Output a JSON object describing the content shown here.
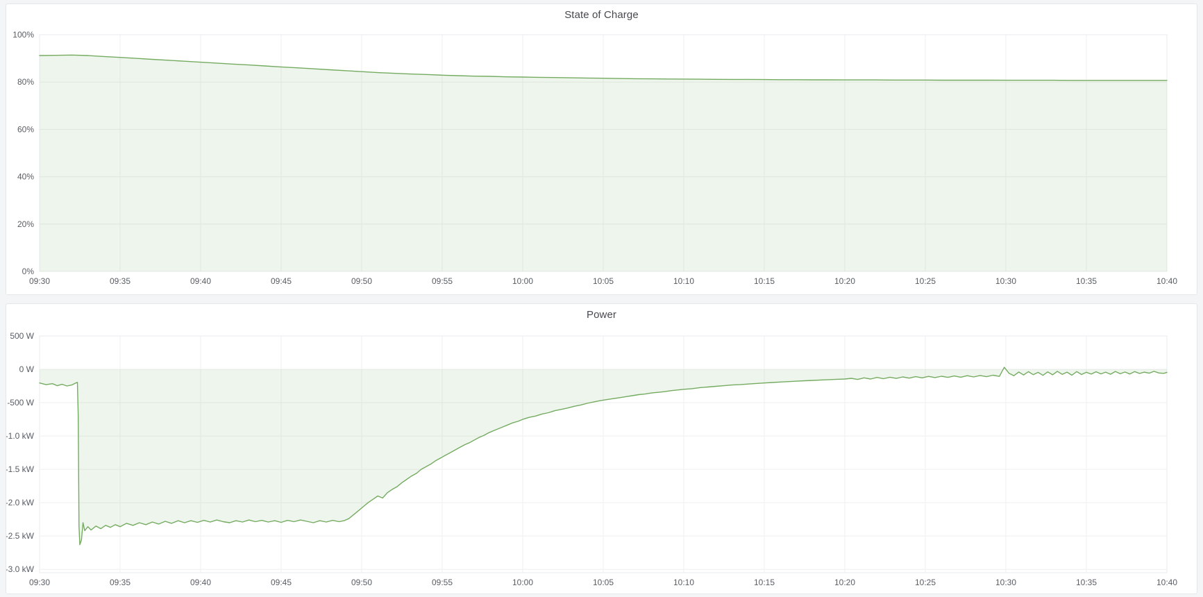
{
  "page": {
    "background": "#f4f5f7"
  },
  "panels": [
    {
      "title": "State of Charge"
    },
    {
      "title": "Power"
    }
  ],
  "colors": {
    "series_line": "#74ab60",
    "series_fill": "rgba(116,171,96,0.12)",
    "gridline": "#eef0f1",
    "plot_border": "#e9ebec",
    "tick_text": "#585d63",
    "panel_background": "#ffffff",
    "panel_border": "#e4e7e9"
  },
  "chart_data": [
    {
      "type": "area",
      "title": "State of Charge",
      "xlabel": "",
      "ylabel": "",
      "unit": "%",
      "grid": true,
      "legend": "none",
      "x_range_minutes": [
        0,
        70
      ],
      "x_tick_step_minutes": 5,
      "x_tick_labels": [
        "09:30",
        "09:35",
        "09:40",
        "09:45",
        "09:50",
        "09:55",
        "10:00",
        "10:05",
        "10:10",
        "10:15",
        "10:20",
        "10:25",
        "10:30",
        "10:35",
        "10:40"
      ],
      "ylim": [
        0,
        100
      ],
      "y_ticks": [
        {
          "value": 100,
          "label": "100%"
        },
        {
          "value": 80,
          "label": "80%"
        },
        {
          "value": 60,
          "label": "60%"
        },
        {
          "value": 40,
          "label": "40%"
        },
        {
          "value": 20,
          "label": "20%"
        },
        {
          "value": 0,
          "label": "0%"
        }
      ],
      "series": [
        {
          "name": "State of Charge",
          "fill_baseline": 0,
          "x_start_minute": 0,
          "x_step_minutes": 1,
          "values": [
            91.2,
            91.3,
            91.4,
            91.2,
            90.8,
            90.4,
            90.0,
            89.6,
            89.2,
            88.8,
            88.4,
            88.0,
            87.6,
            87.2,
            86.8,
            86.4,
            86.0,
            85.6,
            85.2,
            84.8,
            84.4,
            84.0,
            83.7,
            83.4,
            83.2,
            82.9,
            82.7,
            82.5,
            82.4,
            82.2,
            82.1,
            82.0,
            81.9,
            81.8,
            81.7,
            81.6,
            81.5,
            81.4,
            81.35,
            81.3,
            81.25,
            81.2,
            81.15,
            81.1,
            81.1,
            81.05,
            81.0,
            81.0,
            80.95,
            80.95,
            80.9,
            80.9,
            80.9,
            80.85,
            80.85,
            80.85,
            80.8,
            80.8,
            80.8,
            80.8,
            80.75,
            80.75,
            80.75,
            80.75,
            80.7,
            80.7,
            80.7,
            80.7,
            80.7,
            80.7,
            80.7
          ]
        }
      ]
    },
    {
      "type": "area",
      "title": "Power",
      "xlabel": "",
      "ylabel": "",
      "unit": "W",
      "grid": true,
      "legend": "none",
      "x_range_minutes": [
        0,
        70
      ],
      "x_tick_step_minutes": 5,
      "x_tick_labels": [
        "09:30",
        "09:35",
        "09:40",
        "09:45",
        "09:50",
        "09:55",
        "10:00",
        "10:05",
        "10:10",
        "10:15",
        "10:20",
        "10:25",
        "10:30",
        "10:35",
        "10:40"
      ],
      "ylim": [
        -3050,
        500
      ],
      "y_ticks": [
        {
          "value": 500,
          "label": "500 W"
        },
        {
          "value": 0,
          "label": "0 W"
        },
        {
          "value": -500,
          "label": "-500 W"
        },
        {
          "value": -1000,
          "label": "-1.0 kW"
        },
        {
          "value": -1500,
          "label": "-1.5 kW"
        },
        {
          "value": -2000,
          "label": "-2.0 kW"
        },
        {
          "value": -2500,
          "label": "-2.5 kW"
        },
        {
          "value": -3000,
          "label": "-3.0 kW"
        }
      ],
      "series": [
        {
          "name": "Power",
          "fill_baseline": 0,
          "points": [
            [
              0,
              -205
            ],
            [
              0.4,
              -230
            ],
            [
              0.8,
              -215
            ],
            [
              1.1,
              -245
            ],
            [
              1.4,
              -225
            ],
            [
              1.7,
              -250
            ],
            [
              2.0,
              -235
            ],
            [
              2.2,
              -210
            ],
            [
              2.35,
              -195
            ],
            [
              2.4,
              -700
            ],
            [
              2.45,
              -2350
            ],
            [
              2.5,
              -2630
            ],
            [
              2.6,
              -2560
            ],
            [
              2.7,
              -2300
            ],
            [
              2.8,
              -2420
            ],
            [
              3.0,
              -2360
            ],
            [
              3.2,
              -2410
            ],
            [
              3.5,
              -2350
            ],
            [
              3.8,
              -2390
            ],
            [
              4.1,
              -2340
            ],
            [
              4.4,
              -2370
            ],
            [
              4.7,
              -2330
            ],
            [
              5.0,
              -2360
            ],
            [
              5.4,
              -2310
            ],
            [
              5.8,
              -2340
            ],
            [
              6.2,
              -2300
            ],
            [
              6.6,
              -2330
            ],
            [
              7.0,
              -2290
            ],
            [
              7.4,
              -2320
            ],
            [
              7.8,
              -2280
            ],
            [
              8.2,
              -2310
            ],
            [
              8.6,
              -2270
            ],
            [
              9.0,
              -2300
            ],
            [
              9.4,
              -2270
            ],
            [
              9.8,
              -2295
            ],
            [
              10.2,
              -2265
            ],
            [
              10.6,
              -2290
            ],
            [
              11.0,
              -2260
            ],
            [
              11.4,
              -2285
            ],
            [
              11.8,
              -2300
            ],
            [
              12.2,
              -2270
            ],
            [
              12.6,
              -2290
            ],
            [
              13.0,
              -2260
            ],
            [
              13.4,
              -2285
            ],
            [
              13.8,
              -2265
            ],
            [
              14.2,
              -2290
            ],
            [
              14.6,
              -2270
            ],
            [
              15.0,
              -2295
            ],
            [
              15.4,
              -2265
            ],
            [
              15.8,
              -2285
            ],
            [
              16.2,
              -2260
            ],
            [
              16.6,
              -2280
            ],
            [
              17.0,
              -2300
            ],
            [
              17.4,
              -2270
            ],
            [
              17.8,
              -2290
            ],
            [
              18.2,
              -2265
            ],
            [
              18.6,
              -2285
            ],
            [
              18.9,
              -2270
            ],
            [
              19.2,
              -2240
            ],
            [
              19.5,
              -2180
            ],
            [
              19.8,
              -2120
            ],
            [
              20.1,
              -2060
            ],
            [
              20.4,
              -2000
            ],
            [
              20.7,
              -1950
            ],
            [
              21.0,
              -1900
            ],
            [
              21.3,
              -1930
            ],
            [
              21.6,
              -1850
            ],
            [
              21.9,
              -1800
            ],
            [
              22.2,
              -1760
            ],
            [
              22.5,
              -1700
            ],
            [
              22.8,
              -1650
            ],
            [
              23.1,
              -1600
            ],
            [
              23.4,
              -1560
            ],
            [
              23.7,
              -1500
            ],
            [
              24.0,
              -1460
            ],
            [
              24.3,
              -1420
            ],
            [
              24.6,
              -1370
            ],
            [
              24.9,
              -1330
            ],
            [
              25.2,
              -1290
            ],
            [
              25.5,
              -1250
            ],
            [
              25.8,
              -1210
            ],
            [
              26.1,
              -1170
            ],
            [
              26.4,
              -1130
            ],
            [
              26.7,
              -1100
            ],
            [
              27.0,
              -1060
            ],
            [
              27.3,
              -1020
            ],
            [
              27.6,
              -990
            ],
            [
              27.9,
              -950
            ],
            [
              28.2,
              -920
            ],
            [
              28.5,
              -890
            ],
            [
              28.8,
              -860
            ],
            [
              29.1,
              -830
            ],
            [
              29.4,
              -800
            ],
            [
              29.7,
              -780
            ],
            [
              30.0,
              -750
            ],
            [
              30.4,
              -720
            ],
            [
              30.8,
              -700
            ],
            [
              31.2,
              -670
            ],
            [
              31.6,
              -650
            ],
            [
              32.0,
              -620
            ],
            [
              32.4,
              -600
            ],
            [
              32.8,
              -580
            ],
            [
              33.2,
              -555
            ],
            [
              33.6,
              -535
            ],
            [
              34.0,
              -510
            ],
            [
              34.4,
              -490
            ],
            [
              34.8,
              -470
            ],
            [
              35.2,
              -455
            ],
            [
              35.6,
              -440
            ],
            [
              36.0,
              -425
            ],
            [
              36.4,
              -410
            ],
            [
              36.8,
              -395
            ],
            [
              37.2,
              -380
            ],
            [
              37.6,
              -370
            ],
            [
              38.0,
              -355
            ],
            [
              38.4,
              -345
            ],
            [
              38.8,
              -335
            ],
            [
              39.2,
              -320
            ],
            [
              39.6,
              -310
            ],
            [
              40.0,
              -300
            ],
            [
              40.5,
              -290
            ],
            [
              41.0,
              -275
            ],
            [
              41.5,
              -265
            ],
            [
              42.0,
              -255
            ],
            [
              42.5,
              -245
            ],
            [
              43.0,
              -235
            ],
            [
              43.5,
              -230
            ],
            [
              44.0,
              -220
            ],
            [
              44.5,
              -212
            ],
            [
              45.0,
              -205
            ],
            [
              45.5,
              -198
            ],
            [
              46.0,
              -190
            ],
            [
              46.5,
              -184
            ],
            [
              47.0,
              -178
            ],
            [
              47.5,
              -172
            ],
            [
              48.0,
              -166
            ],
            [
              48.5,
              -160
            ],
            [
              49.0,
              -155
            ],
            [
              49.5,
              -150
            ],
            [
              50.0,
              -145
            ],
            [
              50.4,
              -135
            ],
            [
              50.8,
              -152
            ],
            [
              51.2,
              -128
            ],
            [
              51.6,
              -145
            ],
            [
              52.0,
              -122
            ],
            [
              52.4,
              -140
            ],
            [
              52.8,
              -118
            ],
            [
              53.2,
              -136
            ],
            [
              53.6,
              -114
            ],
            [
              54.0,
              -132
            ],
            [
              54.4,
              -110
            ],
            [
              54.8,
              -128
            ],
            [
              55.2,
              -106
            ],
            [
              55.6,
              -124
            ],
            [
              56.0,
              -104
            ],
            [
              56.4,
              -120
            ],
            [
              56.8,
              -100
            ],
            [
              57.2,
              -118
            ],
            [
              57.6,
              -96
            ],
            [
              58.0,
              -114
            ],
            [
              58.4,
              -92
            ],
            [
              58.8,
              -110
            ],
            [
              59.2,
              -88
            ],
            [
              59.6,
              -106
            ],
            [
              59.9,
              30
            ],
            [
              60.2,
              -60
            ],
            [
              60.5,
              -95
            ],
            [
              60.8,
              -40
            ],
            [
              61.1,
              -85
            ],
            [
              61.4,
              -35
            ],
            [
              61.7,
              -80
            ],
            [
              62.0,
              -45
            ],
            [
              62.3,
              -90
            ],
            [
              62.6,
              -38
            ],
            [
              62.9,
              -82
            ],
            [
              63.2,
              -30
            ],
            [
              63.5,
              -76
            ],
            [
              63.8,
              -42
            ],
            [
              64.1,
              -88
            ],
            [
              64.4,
              -34
            ],
            [
              64.7,
              -78
            ],
            [
              65.0,
              -44
            ],
            [
              65.3,
              -72
            ],
            [
              65.6,
              -36
            ],
            [
              65.9,
              -68
            ],
            [
              66.2,
              -42
            ],
            [
              66.5,
              -74
            ],
            [
              66.8,
              -32
            ],
            [
              67.1,
              -66
            ],
            [
              67.4,
              -40
            ],
            [
              67.7,
              -70
            ],
            [
              68.0,
              -34
            ],
            [
              68.3,
              -62
            ],
            [
              68.6,
              -42
            ],
            [
              68.9,
              -58
            ],
            [
              69.2,
              -30
            ],
            [
              69.5,
              -55
            ],
            [
              69.8,
              -60
            ],
            [
              70,
              -45
            ]
          ]
        }
      ]
    }
  ]
}
